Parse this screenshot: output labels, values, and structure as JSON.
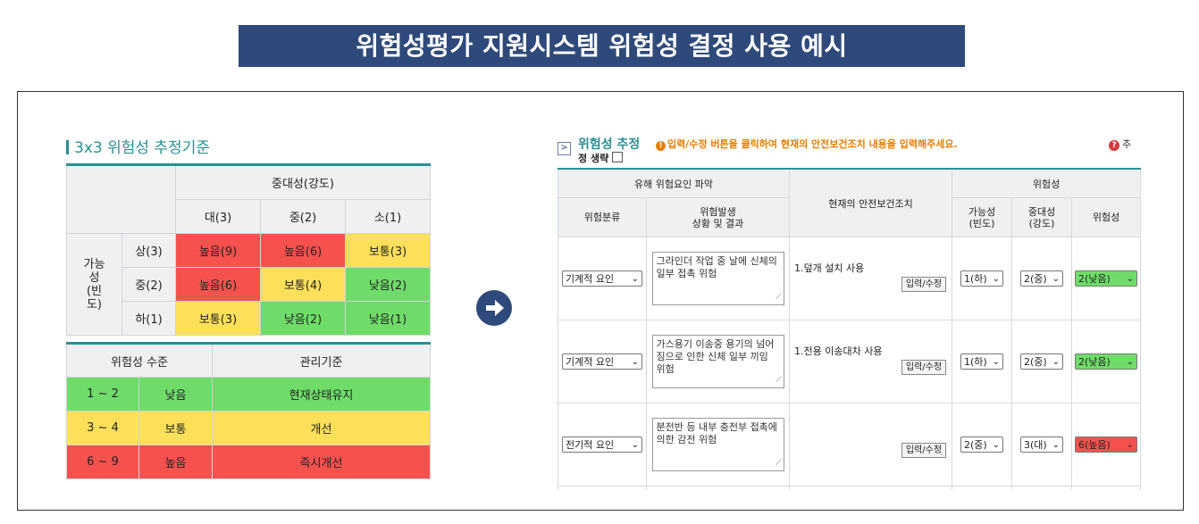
{
  "banner": "위험성평가 지원시스템 위험성 결정 사용 예시",
  "left": {
    "title": "3x3 위험성 추정기준",
    "severity_header": "중대성(강도)",
    "severity_cols": [
      "대(3)",
      "중(2)",
      "소(1)"
    ],
    "likelihood_label_lines": [
      "가능",
      "성",
      "(빈",
      "도)"
    ],
    "rows": [
      {
        "label": "상(3)",
        "cells": [
          {
            "text": "높음(9)",
            "level": "high"
          },
          {
            "text": "높음(6)",
            "level": "high"
          },
          {
            "text": "보통(3)",
            "level": "mid"
          }
        ]
      },
      {
        "label": "중(2)",
        "cells": [
          {
            "text": "높음(6)",
            "level": "high"
          },
          {
            "text": "보통(4)",
            "level": "mid"
          },
          {
            "text": "낮음(2)",
            "level": "low"
          }
        ]
      },
      {
        "label": "하(1)",
        "cells": [
          {
            "text": "보통(3)",
            "level": "mid"
          },
          {
            "text": "낮음(2)",
            "level": "low"
          },
          {
            "text": "낮음(1)",
            "level": "low"
          }
        ]
      }
    ],
    "level_table": {
      "headers": [
        "위험성 수준",
        "관리기준"
      ],
      "rows": [
        {
          "range": "1 ~ 2",
          "level": "낮음",
          "mgmt": "현재상태유지"
        },
        {
          "range": "3 ~ 4",
          "level": "보통",
          "mgmt": "개선"
        },
        {
          "range": "6 ~ 9",
          "level": "높음",
          "mgmt": "즉시개선"
        }
      ]
    },
    "colors": {
      "high": "#f5524f",
      "mid": "#fde05a",
      "low": "#6fdc6a",
      "accent": "#2b8f94",
      "banner": "#2f4a7a"
    }
  },
  "right": {
    "expand_glyph": ">",
    "title": "위험성 추정",
    "notice": "입력/수정 버튼을 클릭하여 현재의 안전보건조치 내용을 입력해주세요.",
    "help_label": "추",
    "omit_label": "정 생략",
    "headers": {
      "group_hazard": "유해 위험요인 파악",
      "measures": "현재의 안전보건조치",
      "group_risk": "위험성",
      "category": "위험분류",
      "situation_lines": [
        "위험발생",
        "상황 및 결과"
      ],
      "likelihood_lines": [
        "가능성",
        "(빈도)"
      ],
      "severity_lines": [
        "중대성",
        "(강도)"
      ],
      "risk": "위험성"
    },
    "edit_button": "입력/수정",
    "rows": [
      {
        "category": "기계적 요인",
        "situation": "그라인더 작업 중 날에 신체의 일부 접촉 위험",
        "measure": "1.덮개 설치 사용",
        "likelihood": "1(하)",
        "severity": "2(중)",
        "risk": "2(낮음)",
        "risk_level": "low"
      },
      {
        "category": "기계적 요인",
        "situation": "가스용기 이송중 용기의 넘어짐으로 인한 신체 일부 끼임 위험",
        "measure": "1.전용 이송대차 사용",
        "likelihood": "1(하)",
        "severity": "2(중)",
        "risk": "2(낮음)",
        "risk_level": "low"
      },
      {
        "category": "전기적 요인",
        "situation": "분전반 등 내부 충전부 접촉에 의한 감전 위험",
        "measure": "",
        "likelihood": "2(중)",
        "severity": "3(대)",
        "risk": "6(높음)",
        "risk_level": "high"
      }
    ]
  }
}
